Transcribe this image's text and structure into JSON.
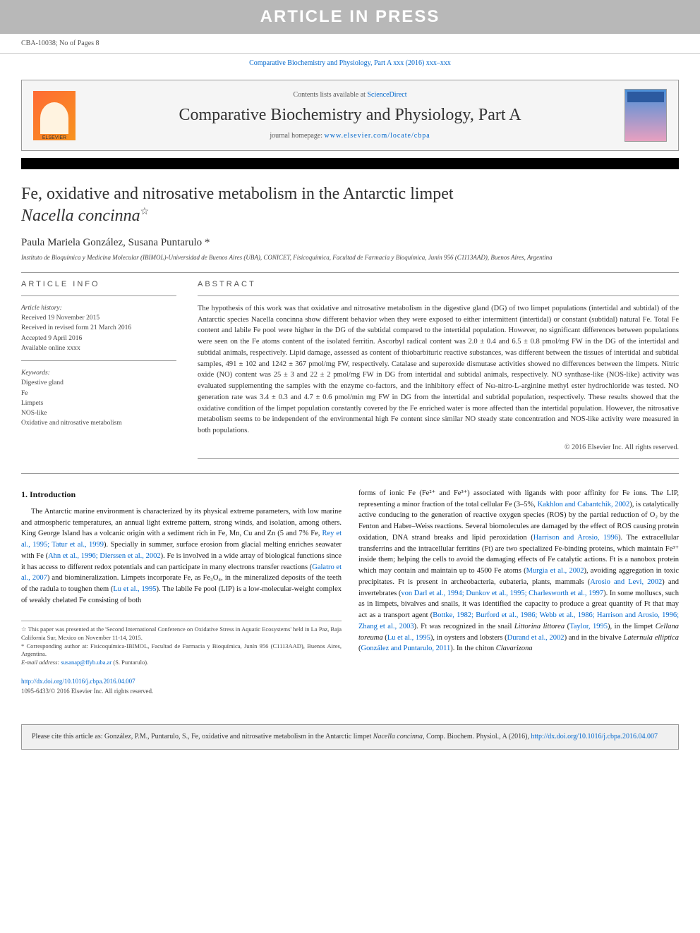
{
  "banner": {
    "text": "ARTICLE IN PRESS"
  },
  "header": {
    "article_id": "CBA-10038; No of Pages 8"
  },
  "journal_ref": {
    "text_prefix": "Comparative Biochemistry and Physiology, Part A xxx (2016) xxx–xxx"
  },
  "journal_box": {
    "elsevier_label": "ELSEVIER",
    "contents_label": "Contents lists available at",
    "contents_link": "ScienceDirect",
    "journal_title": "Comparative Biochemistry and Physiology, Part A",
    "homepage_label": "journal homepage:",
    "homepage_url": "www.elsevier.com/locate/cbpa"
  },
  "article": {
    "title_main": "Fe, oxidative and nitrosative metabolism in the Antarctic limpet",
    "title_species": "Nacella concinna",
    "star": "☆",
    "authors": "Paula Mariela González, Susana Puntarulo *",
    "affiliation": "Instituto de Bioquímica y Medicina Molecular (IBIMOL)-Universidad de Buenos Aires (UBA), CONICET, Fisicoquímica, Facultad de Farmacia y Bioquímica, Junín 956 (C1113AAD), Buenos Aires, Argentina"
  },
  "info": {
    "heading": "ARTICLE INFO",
    "history_label": "Article history:",
    "received": "Received 19 November 2015",
    "revised": "Received in revised form 21 March 2016",
    "accepted": "Accepted 9 April 2016",
    "online": "Available online xxxx",
    "keywords_label": "Keywords:",
    "keywords": [
      "Digestive gland",
      "Fe",
      "Limpets",
      "NOS-like",
      "Oxidative and nitrosative metabolism"
    ]
  },
  "abstract": {
    "heading": "ABSTRACT",
    "text": "The hypothesis of this work was that oxidative and nitrosative metabolism in the digestive gland (DG) of two limpet populations (intertidal and subtidal) of the Antarctic species Nacella concinna show different behavior when they were exposed to either intermittent (intertidal) or constant (subtidal) natural Fe. Total Fe content and labile Fe pool were higher in the DG of the subtidal compared to the intertidal population. However, no significant differences between populations were seen on the Fe atoms content of the isolated ferritin. Ascorbyl radical content was 2.0 ± 0.4 and 6.5 ± 0.8 pmol/mg FW in the DG of the intertidal and subtidal animals, respectively. Lipid damage, assessed as content of thiobarbituric reactive substances, was different between the tissues of intertidal and subtidal samples, 491 ± 102 and 1242 ± 367 pmol/mg FW, respectively. Catalase and superoxide dismutase activities showed no differences between the limpets. Nitric oxide (NO) content was 25 ± 3 and 22 ± 2 pmol/mg FW in DG from intertidal and subtidal animals, respectively. NO synthase-like (NOS-like) activity was evaluated supplementing the samples with the enzyme co-factors, and the inhibitory effect of Nω-nitro-L-arginine methyl ester hydrochloride was tested. NO generation rate was 3.4 ± 0.3 and 4.7 ± 0.6 pmol/min mg FW in DG from the intertidal and subtidal population, respectively. These results showed that the oxidative condition of the limpet population constantly covered by the Fe enriched water is more affected than the intertidal population. However, the nitrosative metabolism seems to be independent of the environmental high Fe content since similar NO steady state concentration and NOS-like activity were measured in both populations.",
    "copyright": "© 2016 Elsevier Inc. All rights reserved."
  },
  "body": {
    "intro_heading": "1. Introduction",
    "col1_p1_a": "The Antarctic marine environment is characterized by its physical extreme parameters, with low marine and atmospheric temperatures, an annual light extreme pattern, strong winds, and isolation, among others. King George Island has a volcanic origin with a sediment rich in Fe, Mn, Cu and Zn (5 and 7% Fe, ",
    "col1_ref1": "Rey et al., 1995; Tatur et al., 1999",
    "col1_p1_b": "). Specially in summer, surface erosion from glacial melting enriches seawater with Fe (",
    "col1_ref2": "Ahn et al., 1996; Dierssen et al., 2002",
    "col1_p1_c": "). Fe is involved in a wide array of biological functions since it has access to different redox potentials and can participate in many electrons transfer reactions (",
    "col1_ref3": "Galatro et al., 2007",
    "col1_p1_d": ") and biomineralization. Limpets incorporate Fe, as Fe₃O₄, in the mineralized deposits of the teeth of the radula to toughen them (",
    "col1_ref4": "Lu et al., 1995",
    "col1_p1_e": "). The labile Fe pool (LIP) is a low-molecular-weight complex of weakly chelated Fe consisting of both",
    "col2_p1_a": "forms of ionic Fe (Fe²⁺ and Fe³⁺) associated with ligands with poor affinity for Fe ions. The LIP, representing a minor fraction of the total cellular Fe (3–5%, ",
    "col2_ref1": "Kakhlon and Cabantchik, 2002",
    "col2_p1_b": "), is catalytically active conducing to the generation of reactive oxygen species (ROS) by the partial reduction of O₂ by the Fenton and Haber–Weiss reactions. Several biomolecules are damaged by the effect of ROS causing protein oxidation, DNA strand breaks and lipid peroxidation (",
    "col2_ref2": "Harrison and Arosio, 1996",
    "col2_p1_c": "). The extracellular transferrins and the intracellular ferritins (Ft) are two specialized Fe-binding proteins, which maintain Fe³⁺ inside them; helping the cells to avoid the damaging effects of Fe catalytic actions. Ft is a nanobox protein which may contain and maintain up to 4500 Fe atoms (",
    "col2_ref3": "Murgia et al., 2002",
    "col2_p1_d": "), avoiding aggregation in toxic precipitates. Ft is present in archeobacteria, eubateria, plants, mammals (",
    "col2_ref4": "Arosio and Levi, 2002",
    "col2_p1_e": ") and invertebrates (",
    "col2_ref5": "von Darl et al., 1994; Dunkov et al., 1995; Charlesworth et al., 1997",
    "col2_p1_f": "). In some molluscs, such as in limpets, bivalves and snails, it was identified the capacity to produce a great quantity of Ft that may act as a transport agent (",
    "col2_ref6": "Bottke, 1982; Burford et al., 1986; Webb et al., 1986; Harrison and Arosio, 1996; Zhang et al., 2003",
    "col2_p1_g": "). Ft was recognized in the snail ",
    "col2_sp1": "Littorina littorea",
    "col2_p1_h": " (",
    "col2_ref7": "Taylor, 1995",
    "col2_p1_i": "), in the limpet ",
    "col2_sp2": "Cellana toreuma",
    "col2_p1_j": " (",
    "col2_ref8": "Lu et al., 1995",
    "col2_p1_k": "), in oysters and lobsters (",
    "col2_ref9": "Durand et al., 2002",
    "col2_p1_l": ") and in the bivalve ",
    "col2_sp3": "Laternula elliptica",
    "col2_p1_m": " (",
    "col2_ref10": "González and Puntarulo, 2011",
    "col2_p1_n": "). In the chiton ",
    "col2_sp4": "Clavarizona"
  },
  "footnotes": {
    "note1": "☆ This paper was presented at the 'Second International Conference on Oxidative Stress in Aquatic Ecosystems' held in La Paz, Baja California Sur, Mexico on November 11-14, 2015.",
    "note2_a": "* Corresponding author at: Fisicoquímica-IBIMOL, Facultad de Farmacia y Bioquímica, Junín 956 (C1113AAD), Buenos Aires, Argentina.",
    "email_label": "E-mail address:",
    "email": "susanap@ffyb.uba.ar",
    "email_suffix": " (S. Puntarulo)."
  },
  "doi": {
    "url": "http://dx.doi.org/10.1016/j.cbpa.2016.04.007",
    "issn_line": "1095-6433/© 2016 Elsevier Inc. All rights reserved."
  },
  "citation": {
    "text_a": "Please cite this article as: González, P.M., Puntarulo, S., Fe, oxidative and nitrosative metabolism in the Antarctic limpet ",
    "species": "Nacella concinna",
    "text_b": ", Comp. Biochem. Physiol., A (2016), ",
    "url": "http://dx.doi.org/10.1016/j.cbpa.2016.04.007"
  },
  "colors": {
    "banner_bg": "#b8b8b8",
    "link": "#0066cc",
    "box_bg": "#f5f5f5",
    "cite_bg": "#f0f0f0"
  }
}
